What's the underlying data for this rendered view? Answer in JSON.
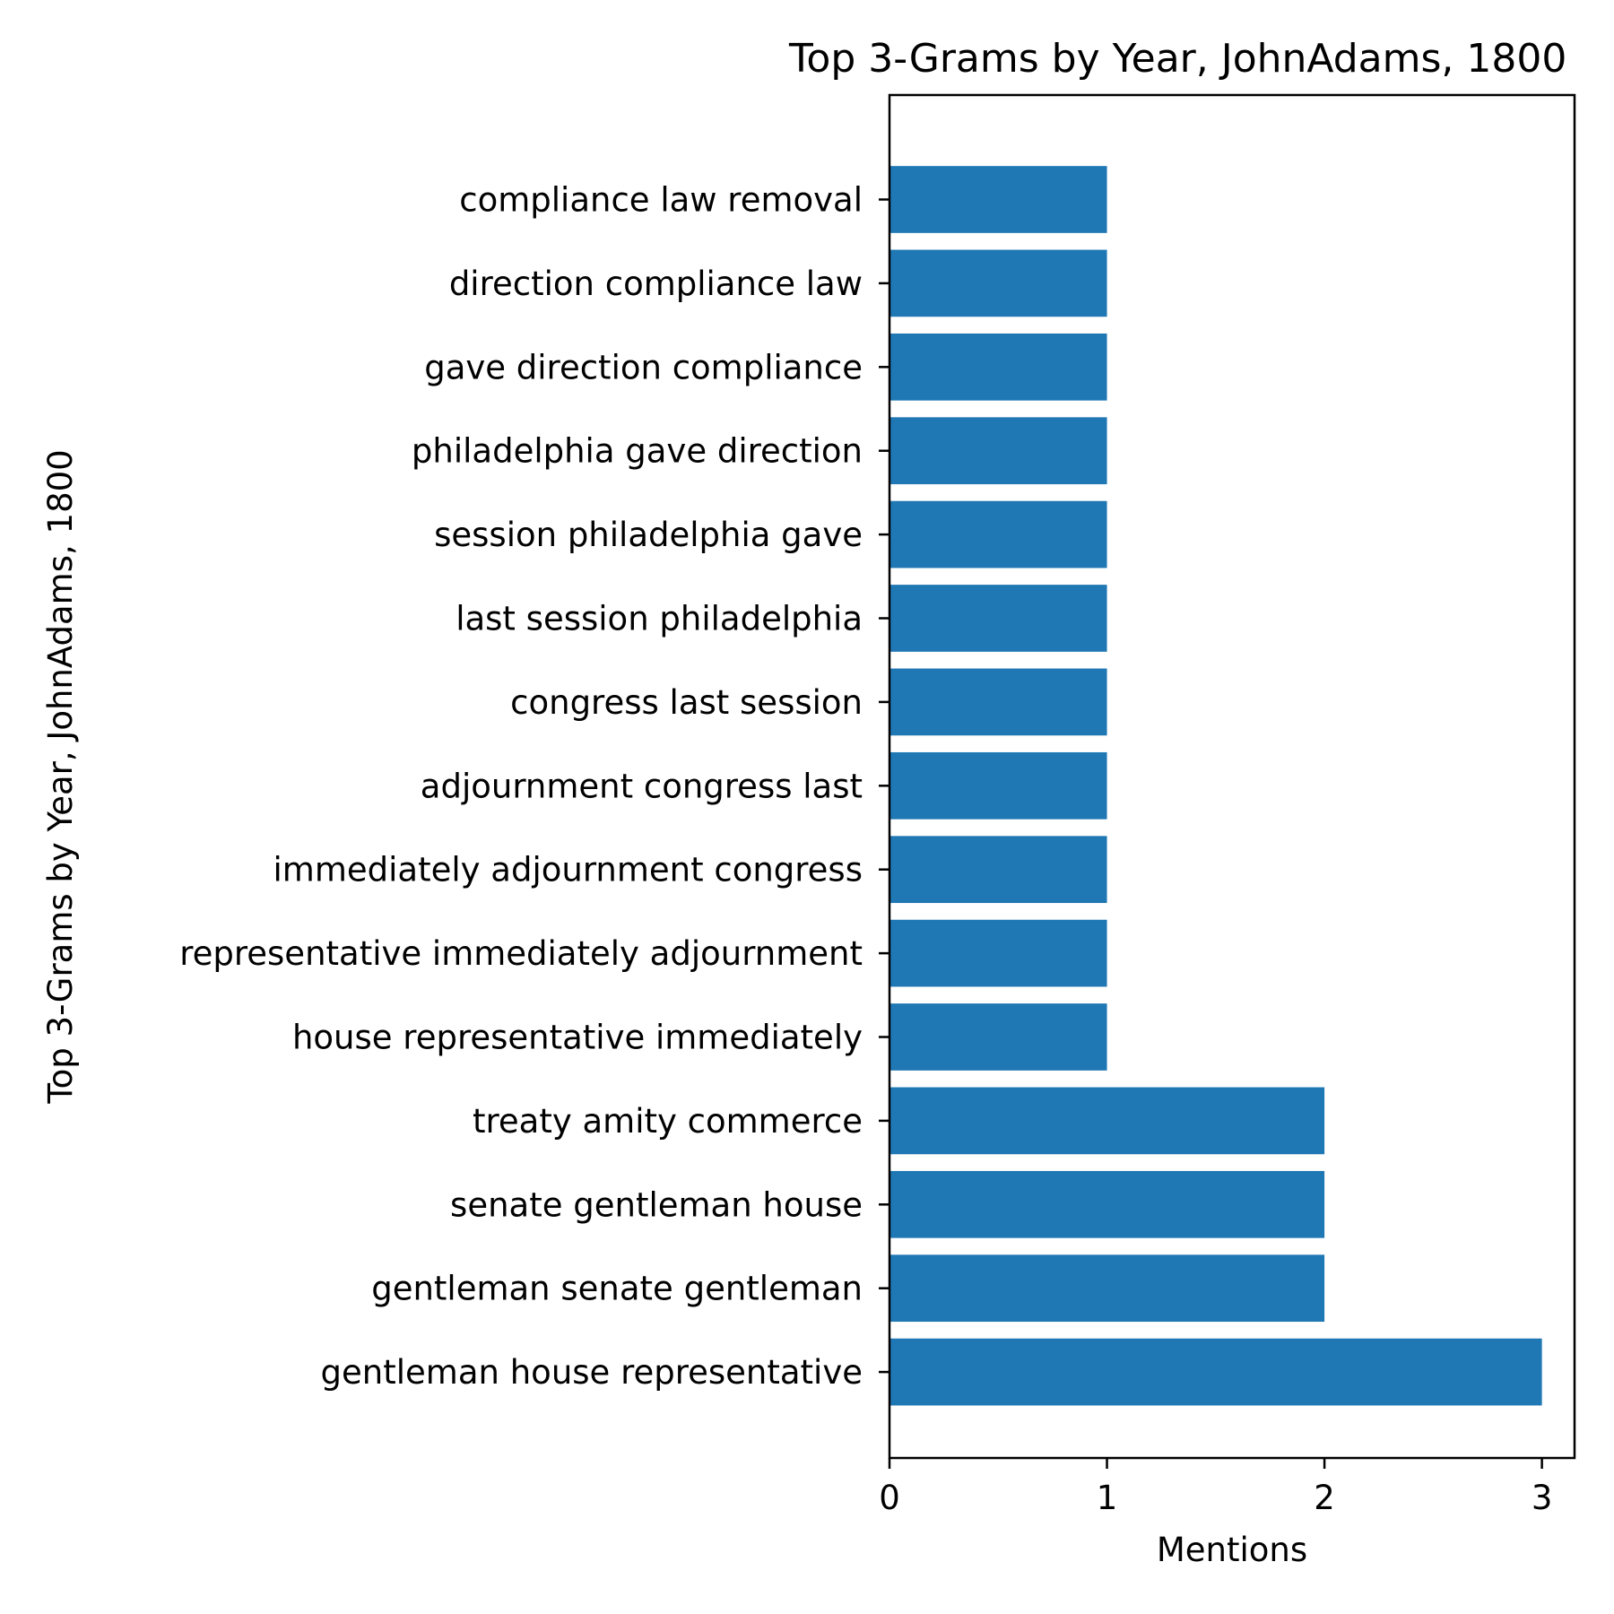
{
  "chart_data": {
    "type": "bar",
    "orientation": "horizontal",
    "title": "Top 3-Grams by Year, JohnAdams, 1800",
    "xlabel": "Mentions",
    "ylabel": "Top 3-Grams by Year, JohnAdams, 1800",
    "xlim": [
      0,
      3.15
    ],
    "xticks": [
      "0",
      "1",
      "2",
      "3"
    ],
    "grid": false,
    "legend": "none",
    "bar_color": "#1f77b4",
    "categories": [
      "gentleman house representative",
      "gentleman senate gentleman",
      "senate gentleman house",
      "treaty amity commerce",
      "house representative immediately",
      "representative immediately adjournment",
      "immediately adjournment congress",
      "adjournment congress last",
      "congress last session",
      "last session philadelphia",
      "session philadelphia gave",
      "philadelphia gave direction",
      "gave direction compliance",
      "direction compliance law",
      "compliance law removal"
    ],
    "values": [
      3,
      2,
      2,
      2,
      1,
      1,
      1,
      1,
      1,
      1,
      1,
      1,
      1,
      1,
      1
    ]
  }
}
